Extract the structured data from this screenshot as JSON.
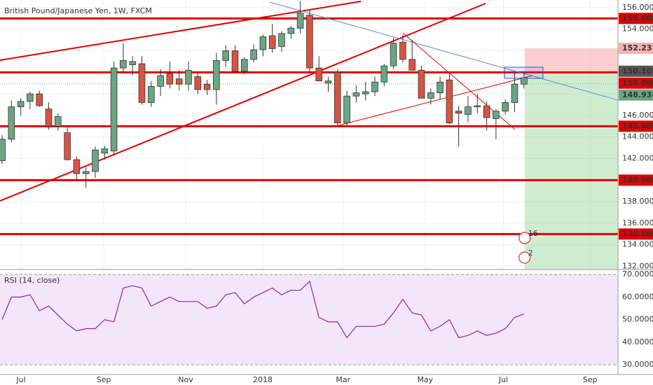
{
  "chart_data": {
    "type": "candlestick",
    "title": "British Pound/Japanese Yen, 1W, FXCM",
    "colors": {
      "up": "#6ba583",
      "down": "#d75442",
      "level": "#e00000",
      "rsi": "#8e24aa"
    },
    "open": [
      141.8,
      143.8,
      146.8,
      147.3,
      148.0,
      146.6,
      145.0,
      144.4,
      141.9,
      140.6,
      140.8,
      142.5,
      142.7,
      150.4,
      150.7,
      150.8,
      147.2,
      148.7,
      149.9,
      149.4,
      148.9,
      149.6,
      148.9,
      148.4,
      151.1,
      152.0,
      150.1,
      151.2,
      152.1,
      153.4,
      152.4,
      153.6,
      154.1,
      155.3,
      150.4,
      149.0,
      150.0,
      145.3,
      147.8,
      148.0,
      148.2,
      149.1,
      150.6,
      152.8,
      151.2,
      150.2,
      147.6,
      148.1,
      149.3,
      146.4,
      146.1,
      146.8,
      146.9,
      145.7,
      146.4,
      147.2,
      148.9
    ],
    "high": [
      144.2,
      147.4,
      147.6,
      148.2,
      148.3,
      147.2,
      146.2,
      145.0,
      142.2,
      141.2,
      143.1,
      143.2,
      151.0,
      152.7,
      151.5,
      151.5,
      149.2,
      150.3,
      151.0,
      150.2,
      151.0,
      150.1,
      149.3,
      151.8,
      152.5,
      152.5,
      151.4,
      152.6,
      153.5,
      154.5,
      153.8,
      154.3,
      156.6,
      155.8,
      151.5,
      149.6,
      150.3,
      148.3,
      148.8,
      149.1,
      149.6,
      150.8,
      153.2,
      153.5,
      153.0,
      150.6,
      148.5,
      149.6,
      149.9,
      146.9,
      147.8,
      148.0,
      147.3,
      146.6,
      147.5,
      150.0,
      150.1
    ],
    "low": [
      141.5,
      143.5,
      146.0,
      146.6,
      146.8,
      144.7,
      144.6,
      141.8,
      139.9,
      139.3,
      140.2,
      141.9,
      142.3,
      149.9,
      149.7,
      147.0,
      146.8,
      147.8,
      148.5,
      148.3,
      148.3,
      148.0,
      147.9,
      147.0,
      150.5,
      149.9,
      149.8,
      150.9,
      151.5,
      151.8,
      151.9,
      153.1,
      153.6,
      150.0,
      149.2,
      148.2,
      145.1,
      145.0,
      147.2,
      147.4,
      147.8,
      148.7,
      150.3,
      150.9,
      150.2,
      147.6,
      147.0,
      147.5,
      145.2,
      143.1,
      145.4,
      146.2,
      144.6,
      143.8,
      146.1,
      146.3,
      148.5
    ],
    "close": [
      143.8,
      146.8,
      147.3,
      148.0,
      146.9,
      145.0,
      145.9,
      141.9,
      140.6,
      140.8,
      142.8,
      142.9,
      150.4,
      151.1,
      151.0,
      147.2,
      148.7,
      149.7,
      148.9,
      148.9,
      150.2,
      148.4,
      148.4,
      151.1,
      152.0,
      150.1,
      151.2,
      152.1,
      153.3,
      152.2,
      153.6,
      154.1,
      155.5,
      150.4,
      149.2,
      149.2,
      145.3,
      147.8,
      148.1,
      148.2,
      149.1,
      150.6,
      152.7,
      151.2,
      150.2,
      147.6,
      148.1,
      149.1,
      145.3,
      146.2,
      146.8,
      146.9,
      145.8,
      146.4,
      147.2,
      148.9,
      149.5
    ],
    "xlim": [
      -0.226,
      66.09
    ],
    "xticks": [
      {
        "value": 2.03,
        "label": "Jul"
      },
      {
        "value": 10.9,
        "label": "Sep"
      },
      {
        "value": 19.7,
        "label": "Nov"
      },
      {
        "value": 27.97,
        "label": "2018"
      },
      {
        "value": 36.6,
        "label": "Mar"
      },
      {
        "value": 45.4,
        "label": "May"
      },
      {
        "value": 53.8,
        "label": "Jul"
      },
      {
        "value": 63.1,
        "label": "Sep"
      }
    ],
    "ylim": [
      131.71,
      156.71
    ],
    "yticks": [
      {
        "value": 156,
        "label": "156.000"
      },
      {
        "value": 154,
        "label": "154.000"
      },
      {
        "value": 152,
        "label": "152.000"
      },
      {
        "value": 150,
        "label": "150.000"
      },
      {
        "value": 148,
        "label": "148.000"
      },
      {
        "value": 146,
        "label": "146.000"
      },
      {
        "value": 144,
        "label": "144.000"
      },
      {
        "value": 142,
        "label": "142.000"
      },
      {
        "value": 140,
        "label": "140.000"
      },
      {
        "value": 138,
        "label": "138.000"
      },
      {
        "value": 136,
        "label": "136.000"
      },
      {
        "value": 134,
        "label": "134.000"
      },
      {
        "value": 132,
        "label": "132.000"
      }
    ],
    "levels": [
      {
        "value": 155,
        "label": "155.000"
      },
      {
        "value": 150,
        "label": "150.000"
      },
      {
        "value": 145,
        "label": "145.000"
      },
      {
        "value": 140,
        "label": "140.000"
      },
      {
        "value": 135,
        "label": "135.000"
      }
    ],
    "price_labels": [
      {
        "value": 152.231,
        "label": "152.231",
        "color": "#f7b0b0"
      },
      {
        "value": 150.102,
        "label": "150.102",
        "color": "#555555"
      },
      {
        "value": 148.938,
        "label": "148.938",
        "color": "#6ba583"
      }
    ],
    "events": [
      "16",
      "2"
    ],
    "rsi": {
      "title": "RSI (14, close)",
      "values": [
        50,
        60,
        60,
        61,
        54,
        56,
        52,
        48,
        45,
        46,
        46,
        50,
        49,
        64,
        65,
        64,
        56,
        58,
        60,
        58,
        58,
        58,
        55,
        56,
        61,
        62,
        57,
        60,
        62,
        64,
        61,
        63,
        63,
        67,
        51,
        49,
        49,
        42,
        47,
        47,
        47,
        48,
        53,
        59,
        53,
        52,
        45,
        47,
        50,
        42,
        43,
        45,
        43,
        44,
        46,
        51,
        52.5
      ],
      "ylim": [
        25.7,
        72.2
      ],
      "yticks": [
        {
          "value": 70,
          "label": "70.0000"
        },
        {
          "value": 60,
          "label": "60.0000"
        },
        {
          "value": 50,
          "label": "50.0000"
        },
        {
          "value": 40,
          "label": "40.0000"
        },
        {
          "value": 30,
          "label": "30.0000"
        }
      ]
    }
  }
}
